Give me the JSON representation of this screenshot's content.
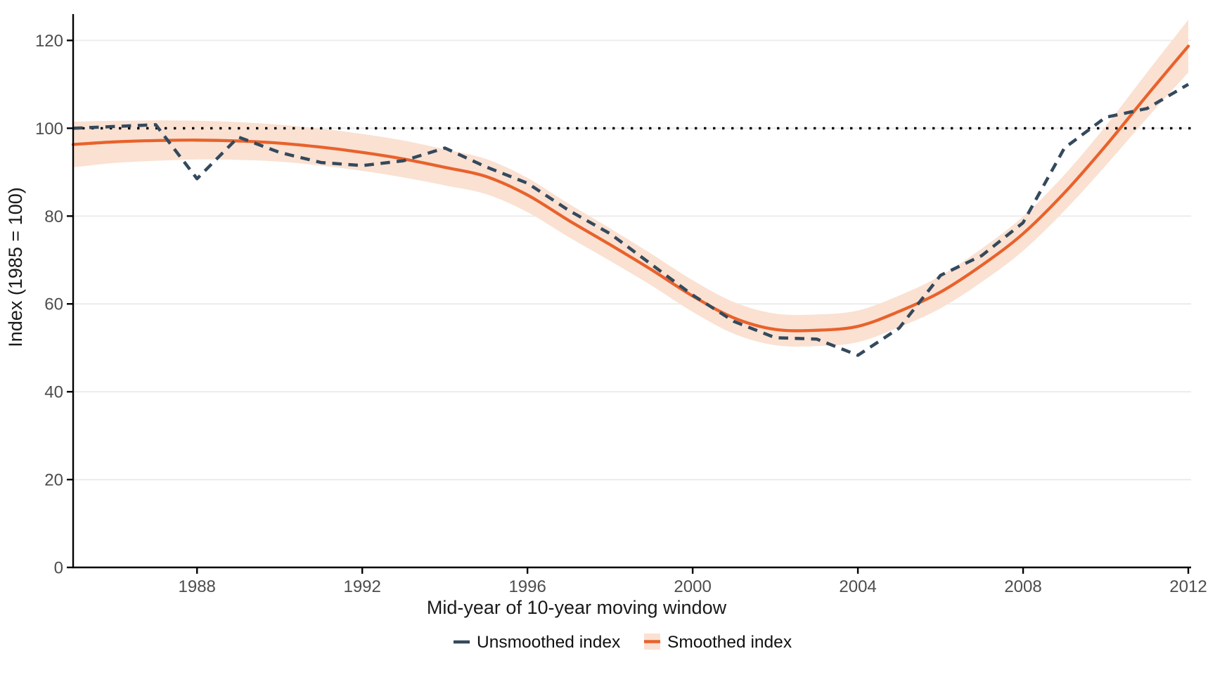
{
  "figure": {
    "xlabel": "Mid-year of 10-year moving window",
    "ylabel": "Index (1985 = 100)",
    "background": "#ffffff",
    "legend_position": "bottom-center"
  },
  "colors": {
    "axis_line": "#000000",
    "axis_text": "#4d4d4d",
    "axis_title": "#1a1a1a",
    "gridline": "#ececec",
    "reference_line": "#000000",
    "unsmoothed": "#34495c",
    "smoothed": "#e8622c",
    "ribbon": "#fae1d2"
  },
  "chart_data": {
    "type": "line",
    "title": "",
    "xlabel": "Mid-year of 10-year moving window",
    "ylabel": "Index (1985 = 100)",
    "xlim": [
      1985,
      2012
    ],
    "ylim": [
      0,
      126
    ],
    "x_ticks": [
      1988,
      1992,
      1996,
      2000,
      2004,
      2008,
      2012
    ],
    "y_ticks": [
      0,
      20,
      40,
      60,
      80,
      100,
      120
    ],
    "grid": "horizontal-major-only",
    "legend_position": "bottom",
    "reference_line": {
      "y": 100,
      "style": "dotted",
      "color": "#000000"
    },
    "x": [
      1985,
      1986,
      1987,
      1988,
      1989,
      1990,
      1991,
      1992,
      1993,
      1994,
      1995,
      1996,
      1997,
      1998,
      1999,
      2000,
      2001,
      2002,
      2003,
      2004,
      2005,
      2006,
      2007,
      2008,
      2009,
      2010,
      2011,
      2012
    ],
    "series": [
      {
        "name": "Unsmoothed index",
        "style": "dashed",
        "color": "#34495c",
        "values": [
          100.0,
          100.4,
          100.8,
          88.5,
          98.0,
          94.5,
          92.2,
          91.5,
          92.6,
          95.5,
          91.2,
          87.5,
          81.3,
          76.0,
          69.0,
          62.0,
          56.0,
          52.3,
          52.0,
          48.3,
          54.5,
          66.5,
          71.0,
          78.5,
          95.5,
          102.5,
          104.5,
          110.0
        ]
      },
      {
        "name": "Smoothed index",
        "style": "solid-with-ribbon",
        "color": "#e8622c",
        "ribbon_color": "#fae1d2",
        "values": [
          96.3,
          96.9,
          97.2,
          97.3,
          97.1,
          96.6,
          95.7,
          94.5,
          93.0,
          91.1,
          89.0,
          84.8,
          79.0,
          73.5,
          67.8,
          61.8,
          56.8,
          54.2,
          54.0,
          54.9,
          58.3,
          62.7,
          68.8,
          76.0,
          85.3,
          96.0,
          107.5,
          118.7
        ],
        "ribbon_upper": [
          101.5,
          101.7,
          101.8,
          101.7,
          101.4,
          100.8,
          99.9,
          98.7,
          97.2,
          95.2,
          93.0,
          88.7,
          82.8,
          77.2,
          71.4,
          65.4,
          60.4,
          57.8,
          57.6,
          58.5,
          61.9,
          66.4,
          72.6,
          79.9,
          89.4,
          100.5,
          112.7,
          124.7
        ],
        "ribbon_lower": [
          91.1,
          92.1,
          92.6,
          92.9,
          92.8,
          92.4,
          91.5,
          90.3,
          88.8,
          87.0,
          85.0,
          80.9,
          75.2,
          69.8,
          64.2,
          58.2,
          53.2,
          50.6,
          50.4,
          51.3,
          54.7,
          59.0,
          65.0,
          72.1,
          81.2,
          91.5,
          102.3,
          112.7
        ]
      }
    ]
  }
}
